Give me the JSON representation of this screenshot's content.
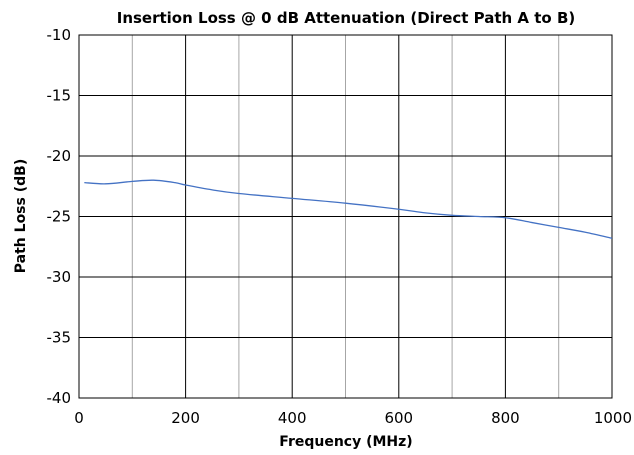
{
  "chart_data": {
    "type": "line",
    "title": "Insertion Loss @ 0 dB Attenuation (Direct Path A to B)",
    "xlabel": "Frequency (MHz)",
    "ylabel": "Path Loss (dB)",
    "xlim": [
      0,
      1000
    ],
    "ylim": [
      -40,
      -10
    ],
    "x_ticks": [
      0,
      200,
      400,
      600,
      800,
      1000
    ],
    "x_minor_step": 100,
    "y_ticks": [
      -40,
      -35,
      -30,
      -25,
      -20,
      -15,
      -10
    ],
    "grid": true,
    "legend": "none",
    "colors": {
      "line": "#4472c4",
      "major_grid": "#000000",
      "minor_grid": "#a6a6a6"
    },
    "series": [
      {
        "x": [
          10,
          50,
          100,
          140,
          180,
          200,
          250,
          300,
          400,
          500,
          600,
          650,
          700,
          750,
          800,
          850,
          900,
          950,
          1000
        ],
        "values": [
          -22.2,
          -22.3,
          -22.1,
          -22.0,
          -22.2,
          -22.4,
          -22.8,
          -23.1,
          -23.5,
          -23.9,
          -24.4,
          -24.7,
          -24.9,
          -25.0,
          -25.1,
          -25.5,
          -25.9,
          -26.3,
          -26.8
        ]
      }
    ]
  }
}
